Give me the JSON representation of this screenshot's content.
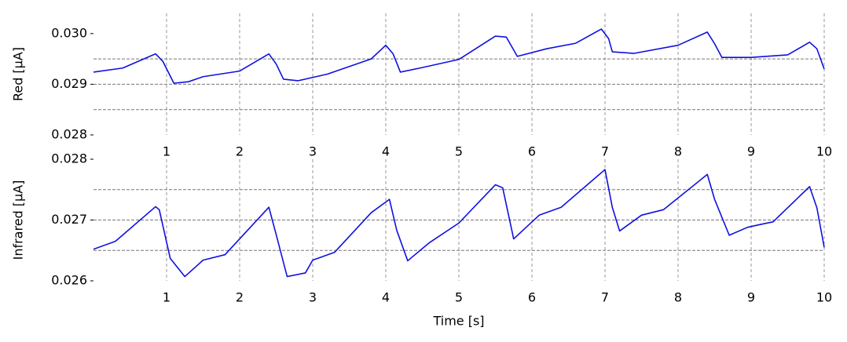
{
  "chart_data": [
    {
      "type": "line",
      "ylabel": "Red [μA]",
      "xlim": [
        0,
        10
      ],
      "xticks": [
        1,
        2,
        3,
        4,
        5,
        6,
        7,
        8,
        9,
        10
      ],
      "ylim": [
        0.028,
        0.0304
      ],
      "yticks": [
        0.028,
        0.029,
        {
          "value": 0.03,
          "label": "0.030"
        }
      ],
      "hlines": [
        0.0295,
        0.029,
        0.0285
      ],
      "grid": true,
      "x": [
        0,
        0.4,
        0.85,
        0.95,
        1.1,
        1.3,
        1.5,
        2.0,
        2.4,
        2.5,
        2.6,
        2.8,
        3.2,
        3.8,
        4.0,
        4.1,
        4.2,
        4.5,
        5.0,
        5.5,
        5.65,
        5.8,
        6.2,
        6.6,
        6.95,
        7.05,
        7.1,
        7.4,
        8.0,
        8.4,
        8.5,
        8.6,
        9.0,
        9.5,
        9.8,
        9.9,
        10
      ],
      "series": [
        {
          "color": "#1010e0",
          "values": [
            0.02924,
            0.02932,
            0.0296,
            0.02945,
            0.02902,
            0.02905,
            0.02915,
            0.02926,
            0.0296,
            0.0294,
            0.0291,
            0.02907,
            0.0292,
            0.0295,
            0.02977,
            0.0296,
            0.02924,
            0.02933,
            0.02949,
            0.02995,
            0.02993,
            0.02955,
            0.0297,
            0.02981,
            0.03009,
            0.0299,
            0.02964,
            0.02961,
            0.02977,
            0.03003,
            0.0298,
            0.02953,
            0.02953,
            0.02958,
            0.02983,
            0.0297,
            0.0293
          ]
        }
      ]
    },
    {
      "type": "line",
      "ylabel": "Infrared [μA]",
      "xlabel": "Time [s]",
      "xlim": [
        0,
        10
      ],
      "xticks": [
        1,
        2,
        3,
        4,
        5,
        6,
        7,
        8,
        9,
        10
      ],
      "ylim": [
        0.026,
        0.028
      ],
      "yticks": [
        0.026,
        0.027,
        0.028
      ],
      "hlines": [
        0.0275,
        0.027,
        0.0265
      ],
      "grid": true,
      "x": [
        0,
        0.3,
        0.85,
        0.9,
        1.05,
        1.25,
        1.5,
        1.8,
        2.4,
        2.5,
        2.65,
        2.9,
        3.0,
        3.3,
        3.8,
        4.05,
        4.15,
        4.3,
        4.6,
        5.0,
        5.5,
        5.6,
        5.75,
        6.1,
        6.4,
        7.0,
        7.1,
        7.2,
        7.5,
        7.8,
        8.4,
        8.5,
        8.7,
        8.95,
        9.1,
        9.3,
        9.8,
        9.9,
        10
      ],
      "series": [
        {
          "color": "#1010e0",
          "values": [
            0.02652,
            0.02665,
            0.02722,
            0.02717,
            0.02637,
            0.02607,
            0.02634,
            0.02643,
            0.02721,
            0.02676,
            0.02607,
            0.02613,
            0.02634,
            0.02647,
            0.02712,
            0.02734,
            0.02683,
            0.02633,
            0.02663,
            0.02695,
            0.02758,
            0.02753,
            0.02669,
            0.02708,
            0.02721,
            0.02783,
            0.02721,
            0.02682,
            0.02708,
            0.02717,
            0.02775,
            0.02734,
            0.02675,
            0.02688,
            0.02692,
            0.02697,
            0.02755,
            0.0272,
            0.02655
          ]
        }
      ]
    }
  ]
}
